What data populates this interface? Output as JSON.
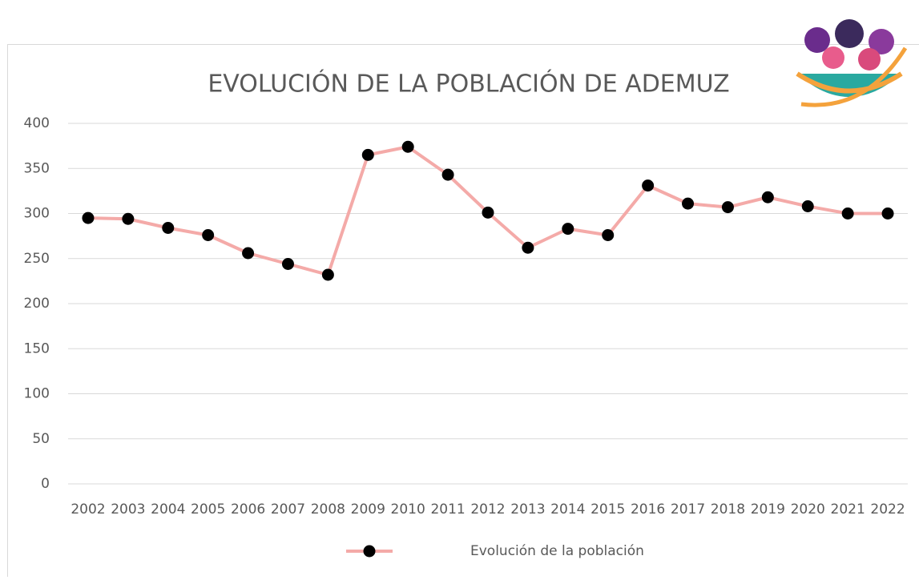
{
  "chart_data": {
    "type": "line",
    "title": "EVOLUCIÓN DE LA POBLACIÓN DE ADEMUZ",
    "categories": [
      "2002",
      "2003",
      "2004",
      "2005",
      "2006",
      "2007",
      "2008",
      "2009",
      "2010",
      "2011",
      "2012",
      "2013",
      "2014",
      "2015",
      "2016",
      "2017",
      "2018",
      "2019",
      "2020",
      "2021",
      "2022"
    ],
    "series": [
      {
        "name": "Evolución de la población",
        "color": "#f4aaa8",
        "marker_color": "#000000",
        "values": [
          295,
          294,
          284,
          276,
          256,
          244,
          232,
          365,
          374,
          343,
          301,
          262,
          283,
          276,
          331,
          311,
          307,
          318,
          308,
          300,
          300
        ]
      }
    ],
    "ylim": [
      0,
      400
    ],
    "yticks": [
      0,
      50,
      100,
      150,
      200,
      250,
      300,
      350,
      400
    ],
    "grid": true,
    "legend": "bottom"
  }
}
